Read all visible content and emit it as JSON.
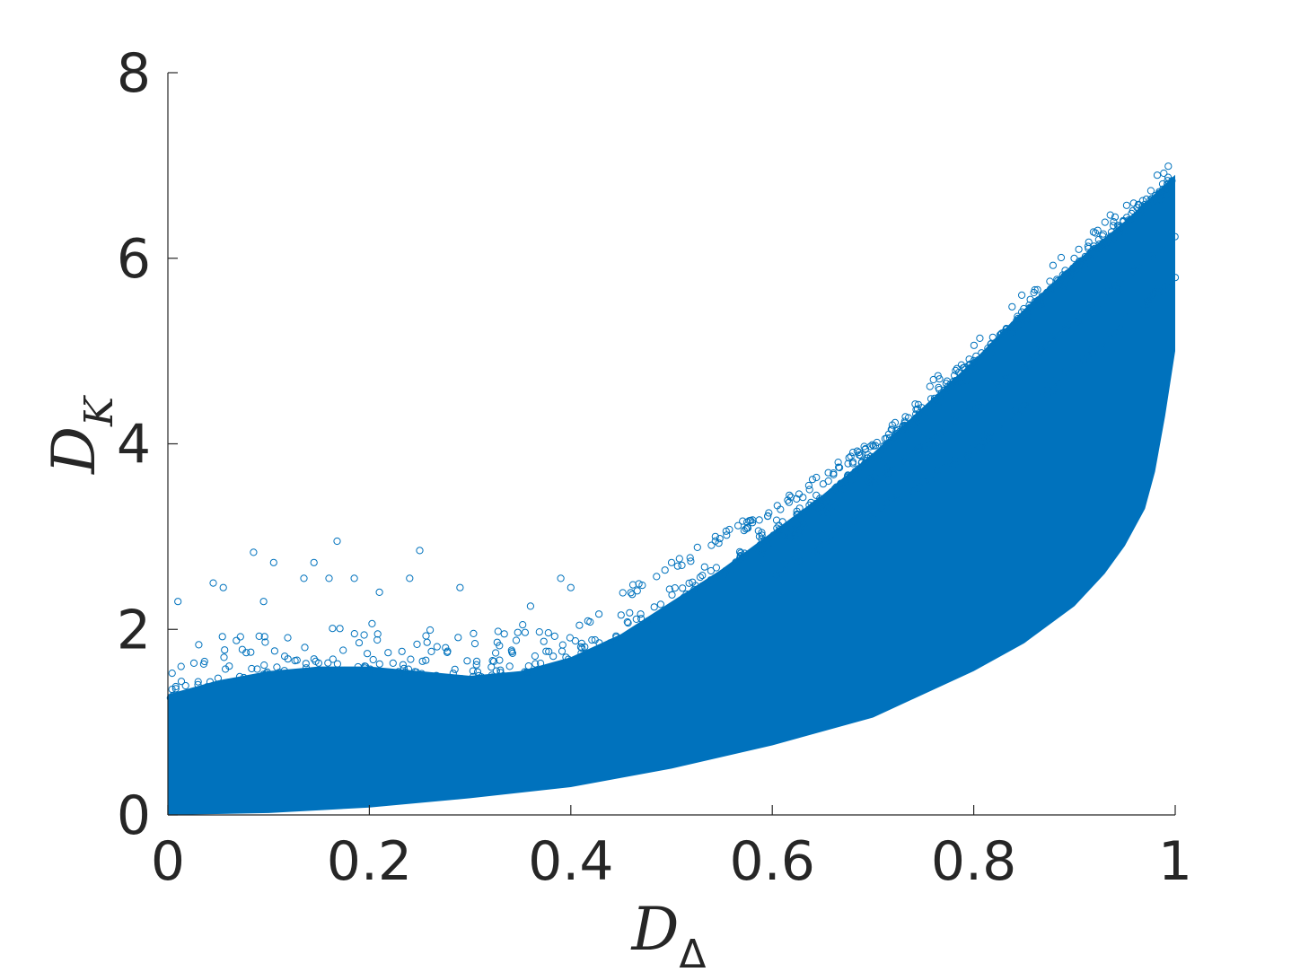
{
  "chart_data": {
    "type": "scatter",
    "title": "",
    "xlabel": {
      "main": "D",
      "sub": "Δ"
    },
    "ylabel": {
      "main": "D",
      "sub": "K"
    },
    "xlim": [
      0,
      1
    ],
    "ylim": [
      0,
      8
    ],
    "xticks": [
      0,
      0.2,
      0.4,
      0.6,
      0.8,
      1
    ],
    "yticks": [
      0,
      2,
      4,
      6,
      8
    ],
    "xtick_labels": [
      "0",
      "0.2",
      "0.4",
      "0.6",
      "0.8",
      "1"
    ],
    "ytick_labels": [
      "0",
      "2",
      "4",
      "6",
      "8"
    ],
    "grid": false,
    "legend": "none",
    "marker": "open-circle",
    "series_color": "#0072BD",
    "lower_envelope": {
      "x": [
        0,
        0.1,
        0.2,
        0.3,
        0.4,
        0.5,
        0.6,
        0.7,
        0.8,
        0.85,
        0.9,
        0.93,
        0.95,
        0.97,
        0.98,
        0.99,
        1.0
      ],
      "y": [
        0,
        0.02,
        0.08,
        0.18,
        0.3,
        0.5,
        0.75,
        1.05,
        1.55,
        1.85,
        2.25,
        2.6,
        2.9,
        3.3,
        3.7,
        4.3,
        5.0
      ]
    },
    "upper_envelope": {
      "x": [
        0,
        0.05,
        0.1,
        0.15,
        0.2,
        0.25,
        0.3,
        0.35,
        0.4,
        0.45,
        0.5,
        0.55,
        0.6,
        0.65,
        0.7,
        0.75,
        0.8,
        0.85,
        0.9,
        0.95,
        1.0
      ],
      "y": [
        1.3,
        1.45,
        1.55,
        1.6,
        1.6,
        1.55,
        1.5,
        1.55,
        1.7,
        1.95,
        2.3,
        2.65,
        3.05,
        3.45,
        3.9,
        4.4,
        4.9,
        5.45,
        5.95,
        6.4,
        6.9
      ]
    },
    "ridge_lines": [
      {
        "x": [
          0.45,
          0.6,
          0.7,
          0.8,
          0.9,
          1.0
        ],
        "y": [
          2.35,
          3.3,
          4.0,
          4.85,
          5.85,
          6.9
        ]
      },
      {
        "x": [
          0.6,
          0.7,
          0.8,
          0.9,
          1.0
        ],
        "y": [
          2.9,
          3.6,
          4.4,
          5.3,
          6.2
        ]
      },
      {
        "x": [
          0.6,
          0.7,
          0.8,
          0.9,
          1.0
        ],
        "y": [
          2.6,
          3.25,
          3.95,
          4.8,
          5.8
        ]
      }
    ],
    "outliers": [
      {
        "x": 0.085,
        "y": 2.83
      },
      {
        "x": 0.095,
        "y": 2.3
      },
      {
        "x": 0.105,
        "y": 2.72
      },
      {
        "x": 0.135,
        "y": 2.55
      },
      {
        "x": 0.145,
        "y": 2.72
      },
      {
        "x": 0.16,
        "y": 2.55
      },
      {
        "x": 0.168,
        "y": 2.95
      },
      {
        "x": 0.185,
        "y": 2.55
      },
      {
        "x": 0.21,
        "y": 2.4
      },
      {
        "x": 0.24,
        "y": 2.55
      },
      {
        "x": 0.25,
        "y": 2.85
      },
      {
        "x": 0.29,
        "y": 2.45
      },
      {
        "x": 0.045,
        "y": 2.5
      },
      {
        "x": 0.055,
        "y": 2.45
      },
      {
        "x": 0.01,
        "y": 2.3
      },
      {
        "x": 0.39,
        "y": 2.55
      },
      {
        "x": 0.4,
        "y": 2.45
      },
      {
        "x": 0.36,
        "y": 2.25
      }
    ]
  }
}
